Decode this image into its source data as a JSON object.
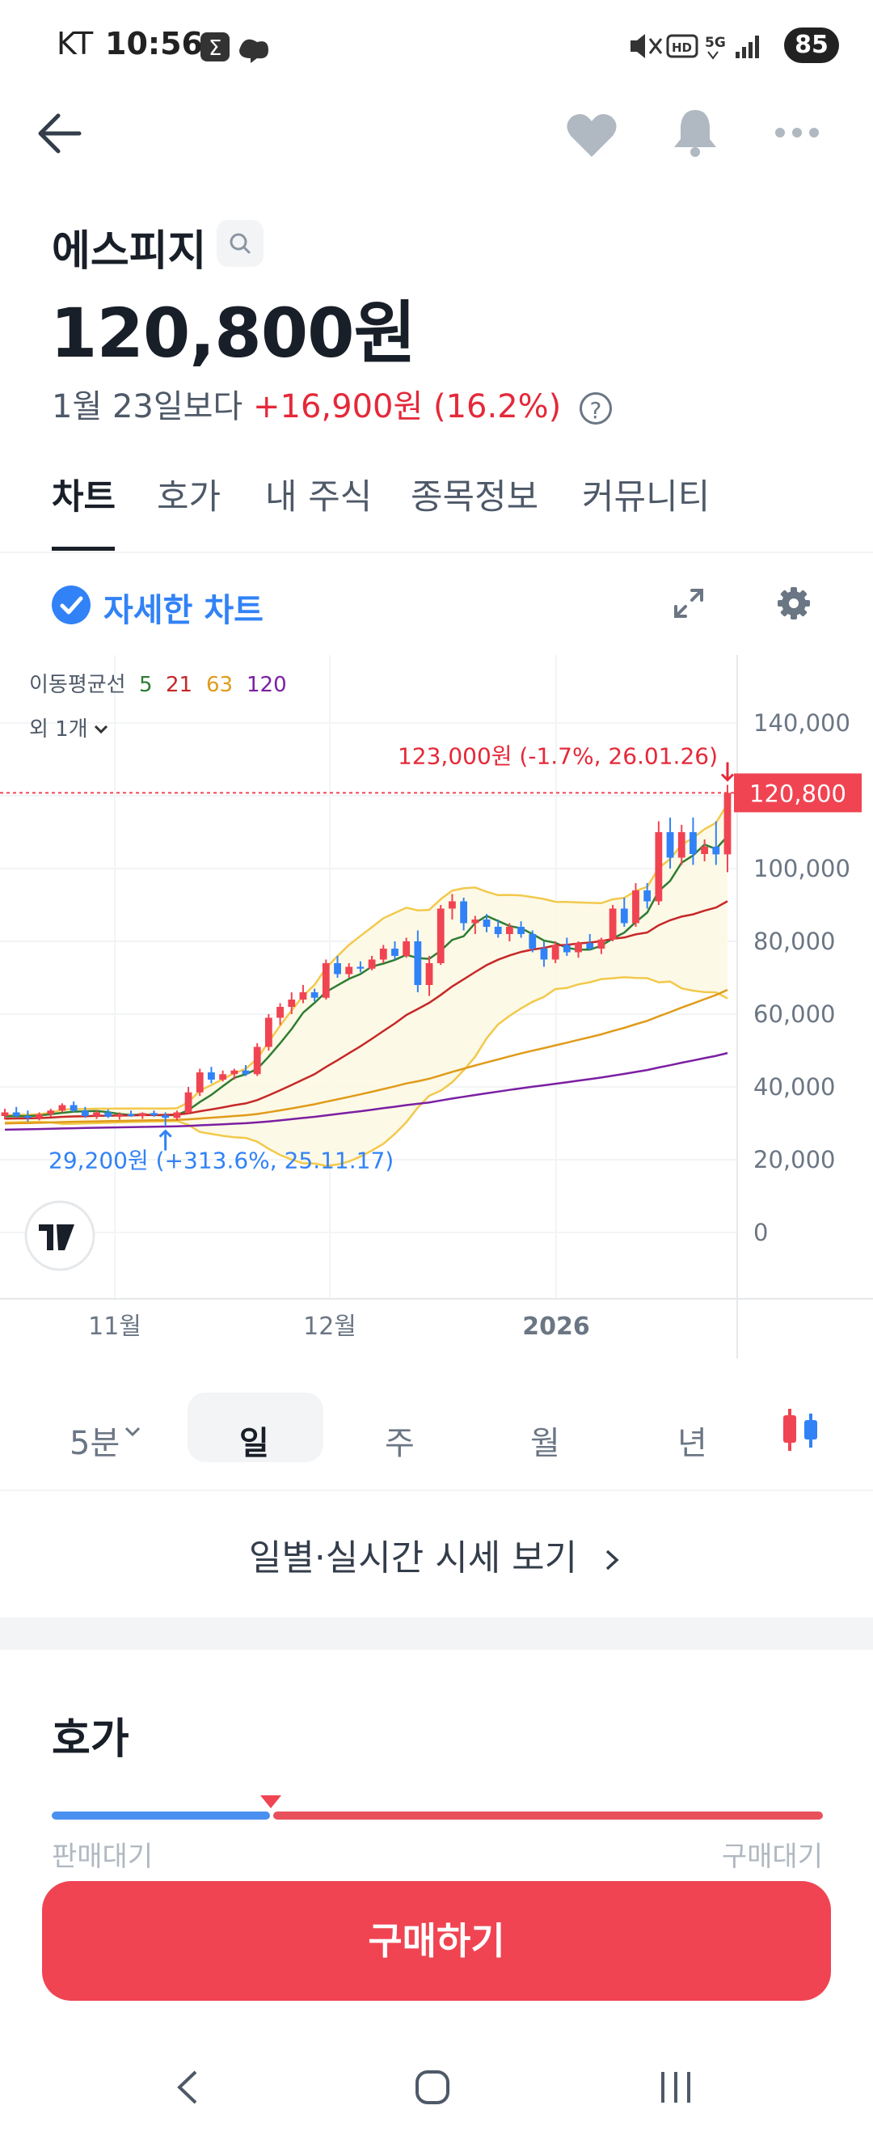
{
  "status_bar": {
    "carrier": "KT",
    "time": "10:56",
    "battery": "85"
  },
  "stock": {
    "name": "에스피지",
    "price": "120,800원",
    "change_prefix": "1월 23일보다",
    "change_value": "+16,900원 (16.2%)"
  },
  "tabs": [
    "차트",
    "호가",
    "내 주식",
    "종목정보",
    "커뮤니티"
  ],
  "detail_chart_label": "자세한 차트",
  "chart_data": {
    "type": "candlestick",
    "legend_prefix": "이동평균선",
    "ma_periods": [
      {
        "label": "5",
        "color": "#2e7d32"
      },
      {
        "label": "21",
        "color": "#c62828"
      },
      {
        "label": "63",
        "color": "#e09b1a"
      },
      {
        "label": "120",
        "color": "#7b1fa2"
      }
    ],
    "legend_more": "외 1개",
    "y_ticks": [
      "140,000",
      "120,000",
      "100,000",
      "80,000",
      "60,000",
      "40,000",
      "20,000",
      "0"
    ],
    "y_tick_values": [
      140000,
      120000,
      100000,
      80000,
      60000,
      40000,
      20000,
      0
    ],
    "x_ticks": [
      "11월",
      "12월",
      "2026"
    ],
    "current_price_label": "120,800",
    "current_price": 120800,
    "high_annotation": "123,000원 (-1.7%, 26.01.26)",
    "low_annotation": "29,200원 (+313.6%, 25.11.17)",
    "ylim": [
      0,
      140000
    ],
    "candles": [
      [
        32000,
        34000,
        31000,
        33000
      ],
      [
        33000,
        34500,
        31500,
        32000
      ],
      [
        32000,
        33500,
        30500,
        31500
      ],
      [
        31500,
        33000,
        30800,
        32500
      ],
      [
        32500,
        34000,
        31800,
        33500
      ],
      [
        33500,
        35500,
        33000,
        35000
      ],
      [
        35000,
        36000,
        33000,
        33500
      ],
      [
        33500,
        34500,
        31500,
        32000
      ],
      [
        32000,
        33500,
        31200,
        33000
      ],
      [
        33000,
        33800,
        31500,
        31800
      ],
      [
        31800,
        33000,
        31000,
        32500
      ],
      [
        32500,
        33500,
        31800,
        32000
      ],
      [
        32000,
        33000,
        31200,
        32800
      ],
      [
        32800,
        33500,
        31800,
        32200
      ],
      [
        32200,
        33000,
        29200,
        31500
      ],
      [
        31500,
        33500,
        30800,
        33000
      ],
      [
        33000,
        40000,
        32500,
        38500
      ],
      [
        38500,
        45000,
        37500,
        44000
      ],
      [
        44000,
        45500,
        41000,
        42000
      ],
      [
        42000,
        44500,
        41500,
        43500
      ],
      [
        43500,
        45000,
        42000,
        44500
      ],
      [
        44500,
        46000,
        43000,
        43500
      ],
      [
        43500,
        52000,
        43000,
        51000
      ],
      [
        51000,
        60000,
        50000,
        59000
      ],
      [
        59000,
        63000,
        57000,
        62000
      ],
      [
        62000,
        66000,
        60000,
        64000
      ],
      [
        64000,
        68000,
        63000,
        66000
      ],
      [
        66000,
        67000,
        63500,
        64500
      ],
      [
        64500,
        75000,
        64000,
        74000
      ],
      [
        74000,
        76000,
        70000,
        71000
      ],
      [
        71000,
        74000,
        70000,
        73000
      ],
      [
        73000,
        74500,
        71500,
        72500
      ],
      [
        72500,
        76000,
        72000,
        75000
      ],
      [
        75000,
        79000,
        74000,
        78000
      ],
      [
        78000,
        80000,
        75000,
        76000
      ],
      [
        76000,
        81000,
        75500,
        80000
      ],
      [
        80000,
        83000,
        66000,
        68000
      ],
      [
        68000,
        76000,
        65000,
        74000
      ],
      [
        74000,
        90000,
        73500,
        89000
      ],
      [
        89000,
        93000,
        86000,
        91000
      ],
      [
        91000,
        92000,
        83000,
        85000
      ],
      [
        85000,
        87000,
        82000,
        86000
      ],
      [
        86000,
        87500,
        82500,
        84000
      ],
      [
        84000,
        86000,
        81000,
        82000
      ],
      [
        82000,
        85000,
        80000,
        84000
      ],
      [
        84000,
        85500,
        81000,
        82000
      ],
      [
        82000,
        83000,
        77000,
        78000
      ],
      [
        78000,
        80000,
        73000,
        75000
      ],
      [
        75000,
        80000,
        74000,
        79000
      ],
      [
        79000,
        81000,
        76000,
        77000
      ],
      [
        77000,
        80000,
        75500,
        79500
      ],
      [
        79500,
        82000,
        77500,
        78000
      ],
      [
        78000,
        81000,
        76500,
        80500
      ],
      [
        80500,
        90000,
        80000,
        89000
      ],
      [
        89000,
        92000,
        84000,
        85000
      ],
      [
        85000,
        96000,
        84000,
        94000
      ],
      [
        94000,
        96000,
        89000,
        91000
      ],
      [
        91000,
        113000,
        90000,
        110000
      ],
      [
        110000,
        114000,
        100000,
        103000
      ],
      [
        103000,
        112000,
        101000,
        110000
      ],
      [
        110000,
        114000,
        101000,
        104000
      ],
      [
        104000,
        108000,
        102000,
        106000
      ],
      [
        106000,
        113000,
        101000,
        103900
      ],
      [
        103900,
        123000,
        99000,
        120800
      ]
    ]
  },
  "periods": [
    "5분",
    "일",
    "주",
    "월",
    "년"
  ],
  "daily_link": "일별·실시간 시세 보기",
  "hoga": {
    "title": "호가",
    "sell_label": "판매대기",
    "buy_label": "구매대기",
    "buy_ratio": 0.21
  },
  "buy_button": "구매하기",
  "colors": {
    "up": "#e42939",
    "down": "#3182f6",
    "accent": "#3182f6",
    "buy": "#f04452"
  }
}
